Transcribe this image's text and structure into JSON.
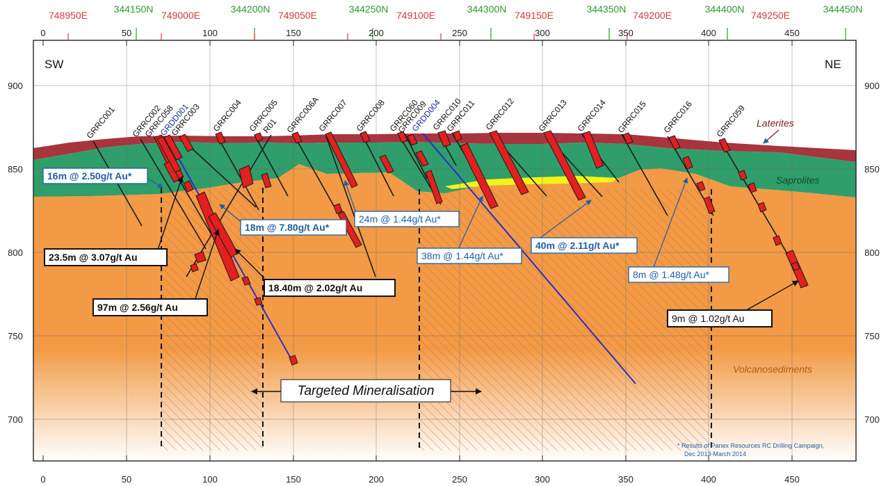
{
  "axes": {
    "distance_ticks": [
      "0",
      "50",
      "100",
      "150",
      "200",
      "250",
      "300",
      "350",
      "400",
      "450"
    ],
    "rl_ticks": [
      "900",
      "850",
      "800",
      "750",
      "700"
    ]
  },
  "top_coords": {
    "eastings": [
      "748950E",
      "749000E",
      "749050E",
      "749100E",
      "749150E",
      "749200E",
      "749250E"
    ],
    "northings": [
      "344150N",
      "344200N",
      "344250N",
      "344300N",
      "344350N",
      "344400N",
      "344450N"
    ]
  },
  "directions": {
    "left": "SW",
    "right": "NE"
  },
  "layers": {
    "laterites": "Laterites",
    "saprolites": "Saprolites",
    "volcanosediments": "Volcanosediments"
  },
  "colors": {
    "laterite": "#a8343e",
    "saprolite": "#2f9e6a",
    "volcanosediment": "#f29a45",
    "mineralised_interval": "#e31f1f",
    "diamond_hole": "#2c2cc8",
    "rc_hole": "#1a1a1a",
    "east_label": "#d13a3a",
    "north_label": "#2c9b2c",
    "callout_blue": "#1f5fa8"
  },
  "holes": [
    {
      "name": "GRRC001",
      "type": "RC"
    },
    {
      "name": "GRRC002",
      "type": "RC"
    },
    {
      "name": "GRRC058",
      "type": "RC"
    },
    {
      "name": "GRDD001",
      "type": "DD"
    },
    {
      "name": "GRRC003",
      "type": "RC"
    },
    {
      "name": "GRRC004",
      "type": "RC"
    },
    {
      "name": "GRRC005",
      "type": "RC"
    },
    {
      "name": "R01",
      "type": "RC"
    },
    {
      "name": "GRRC006A",
      "type": "RC"
    },
    {
      "name": "GRRC007",
      "type": "RC"
    },
    {
      "name": "GRRC008",
      "type": "RC"
    },
    {
      "name": "GRRC060",
      "type": "RC"
    },
    {
      "name": "GRRC009",
      "type": "RC"
    },
    {
      "name": "GRDD004",
      "type": "DD"
    },
    {
      "name": "GRRC010",
      "type": "RC"
    },
    {
      "name": "GRRC011",
      "type": "RC"
    },
    {
      "name": "GRRC012",
      "type": "RC"
    },
    {
      "name": "GRRC013",
      "type": "RC"
    },
    {
      "name": "GRRC014",
      "type": "RC"
    },
    {
      "name": "GRRC015",
      "type": "RC"
    },
    {
      "name": "GRRC016",
      "type": "RC"
    },
    {
      "name": "GRRC059",
      "type": "RC"
    }
  ],
  "intercepts_historic": [
    "16m @ 2.50g/t Au*",
    "18m @ 7.80g/t Au*",
    "24m @ 1.44g/t Au*",
    "38m @ 1.44g/t Au*",
    "40m @ 2.11g/t Au*",
    "8m @ 1.48g/t Au*"
  ],
  "intercepts_new": [
    "23.5m @ 3.07g/t Au",
    "97m @ 2.56g/t Au",
    "18.40m @ 2.02g/t Au",
    "9m @ 1.02g/t Au"
  ],
  "target_label": "Targeted Mineralisation",
  "footnote": [
    "* Results of Panex Resources RC Drilling Campaign,",
    "Dec 2013-March 2014"
  ]
}
